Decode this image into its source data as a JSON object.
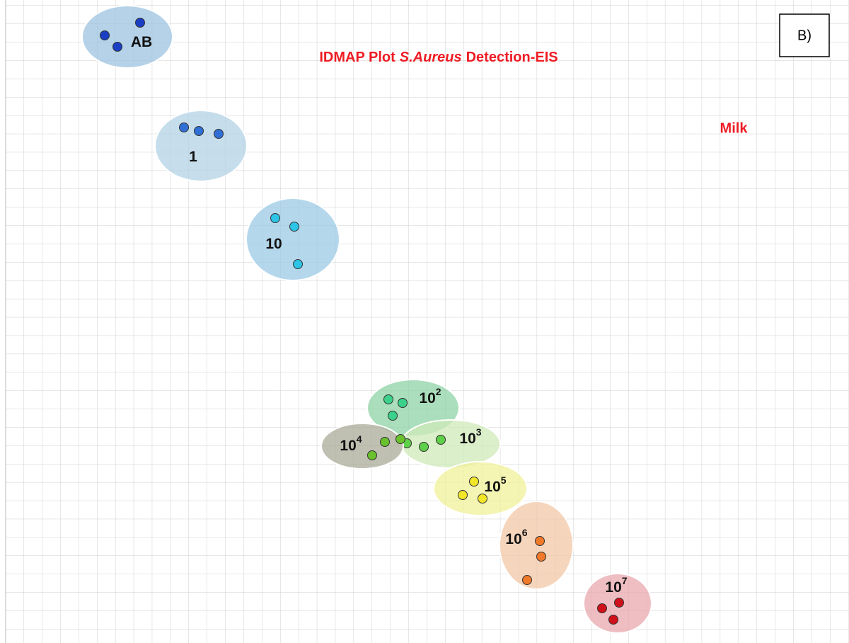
{
  "title": {
    "before": "IDMAP Plot",
    "italic": "S.Aureus",
    "after": "Detection-EIS"
  },
  "panel_label": "B)",
  "sample": "Milk",
  "clusters": [
    {
      "label": "AB"
    },
    {
      "label": "1"
    },
    {
      "label": "10"
    },
    {
      "label": "10",
      "exponent": "2"
    },
    {
      "label": "10",
      "exponent": "3"
    },
    {
      "label": "10",
      "exponent": "4"
    },
    {
      "label": "10",
      "exponent": "5"
    },
    {
      "label": "10",
      "exponent": "6"
    },
    {
      "label": "10",
      "exponent": "7"
    }
  ]
}
